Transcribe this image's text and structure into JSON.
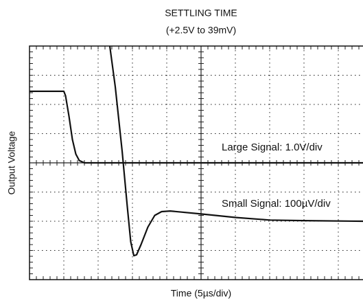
{
  "chart_data": {
    "type": "line",
    "title": "SETTLING TIME",
    "subtitle": "(+2.5V to 39mV)",
    "x_label": "Time (5µs/div)",
    "y_label": "Output Voltage",
    "annotations": [
      "Large Signal: 1.0V/div",
      "Small Signal: 100µV/div"
    ],
    "xlim": [
      0,
      10
    ],
    "ylim": [
      0,
      8
    ],
    "xticks": [
      1,
      2,
      3,
      4,
      5,
      6,
      7,
      8,
      9
    ],
    "yticks": [
      1,
      2,
      3,
      4,
      5,
      6,
      7
    ],
    "grid": true,
    "series": [
      {
        "name": "Large Signal",
        "color": "#111111",
        "x": [
          0,
          1,
          1.05,
          1.15,
          1.25,
          1.35,
          1.45,
          1.6,
          9.72
        ],
        "values": [
          6.45,
          6.45,
          6.3,
          5.6,
          4.8,
          4.3,
          4.08,
          4.0,
          4.0
        ]
      },
      {
        "name": "Small Signal",
        "color": "#111111",
        "x": [
          2.34,
          2.5,
          2.7,
          2.85,
          2.95,
          3.04,
          3.12,
          3.25,
          3.45,
          3.65,
          3.85,
          4.1,
          5,
          6,
          7,
          8,
          9.72
        ],
        "values": [
          8,
          6.6,
          4.4,
          2.5,
          1.3,
          0.82,
          0.85,
          1.2,
          1.8,
          2.2,
          2.33,
          2.35,
          2.25,
          2.13,
          2.04,
          2.02,
          2.0
        ]
      }
    ]
  }
}
